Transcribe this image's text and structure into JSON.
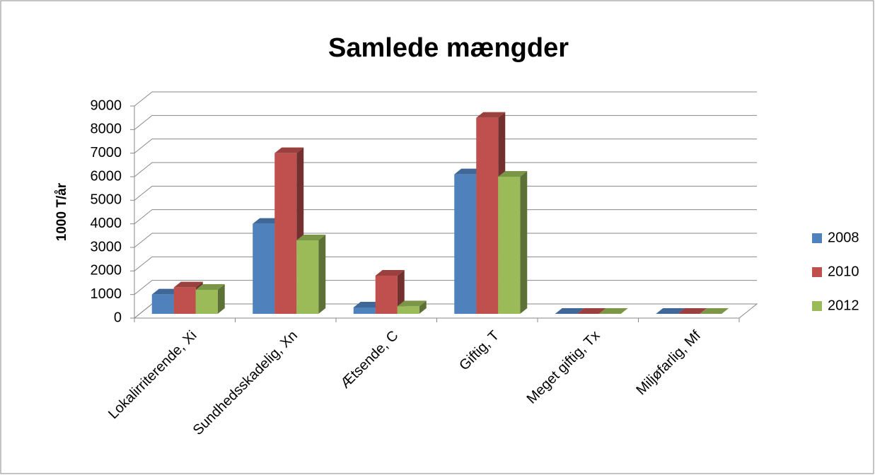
{
  "chart_data": {
    "type": "bar3d",
    "title": "Samlede mængder",
    "y_label": "1000 T/år",
    "categories": [
      "Lokalirriterende, Xi",
      "Sundhedsskadelig, Xn",
      "Ætsende, C",
      "Giftig, T",
      "Meget giftig, Tx",
      "Miljøfarlig, Mf"
    ],
    "series": [
      {
        "name": "2008",
        "color": "#4f81bd",
        "values": [
          1000,
          4000,
          450,
          6100,
          10,
          10
        ]
      },
      {
        "name": "2010",
        "color": "#c0504d",
        "values": [
          1300,
          7000,
          1800,
          8500,
          10,
          10
        ]
      },
      {
        "name": "2012",
        "color": "#9bbb59",
        "values": [
          1200,
          3300,
          500,
          6000,
          10,
          10
        ]
      }
    ],
    "ylim": [
      0,
      9000
    ],
    "yticks": [
      0,
      1000,
      2000,
      3000,
      4000,
      5000,
      6000,
      7000,
      8000,
      9000
    ],
    "grid": true,
    "legend": "right"
  }
}
